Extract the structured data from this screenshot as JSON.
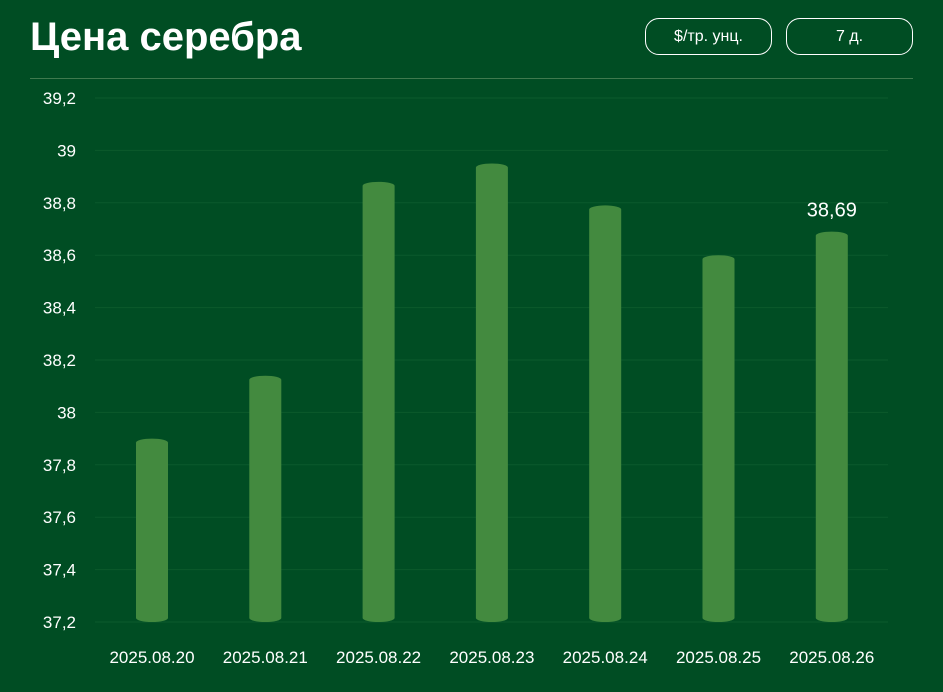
{
  "header": {
    "title": "Цена серебра",
    "unit_button_label": "$/тр. унц.",
    "range_button_label": "7 д."
  },
  "colors": {
    "background": "#004d23",
    "bar": "#438a3f",
    "gridline": "#0b5a2c",
    "text": "#ffffff"
  },
  "chart_data": {
    "type": "bar",
    "title": "",
    "xlabel": "",
    "ylabel": "",
    "categories": [
      "2025.08.20",
      "2025.08.21",
      "2025.08.22",
      "2025.08.23",
      "2025.08.24",
      "2025.08.25",
      "2025.08.26"
    ],
    "values": [
      37.9,
      38.14,
      38.88,
      38.95,
      38.79,
      38.6,
      38.69
    ],
    "ylim": [
      37.2,
      39.2
    ],
    "yticks": [
      "37,2",
      "37,4",
      "37,6",
      "37,8",
      "38",
      "38,2",
      "38,4",
      "38,6",
      "38,8",
      "39",
      "39,2"
    ],
    "data_labels": [
      {
        "category": "2025.08.26",
        "text": "38,69"
      }
    ],
    "grid": true,
    "legend": "none"
  }
}
